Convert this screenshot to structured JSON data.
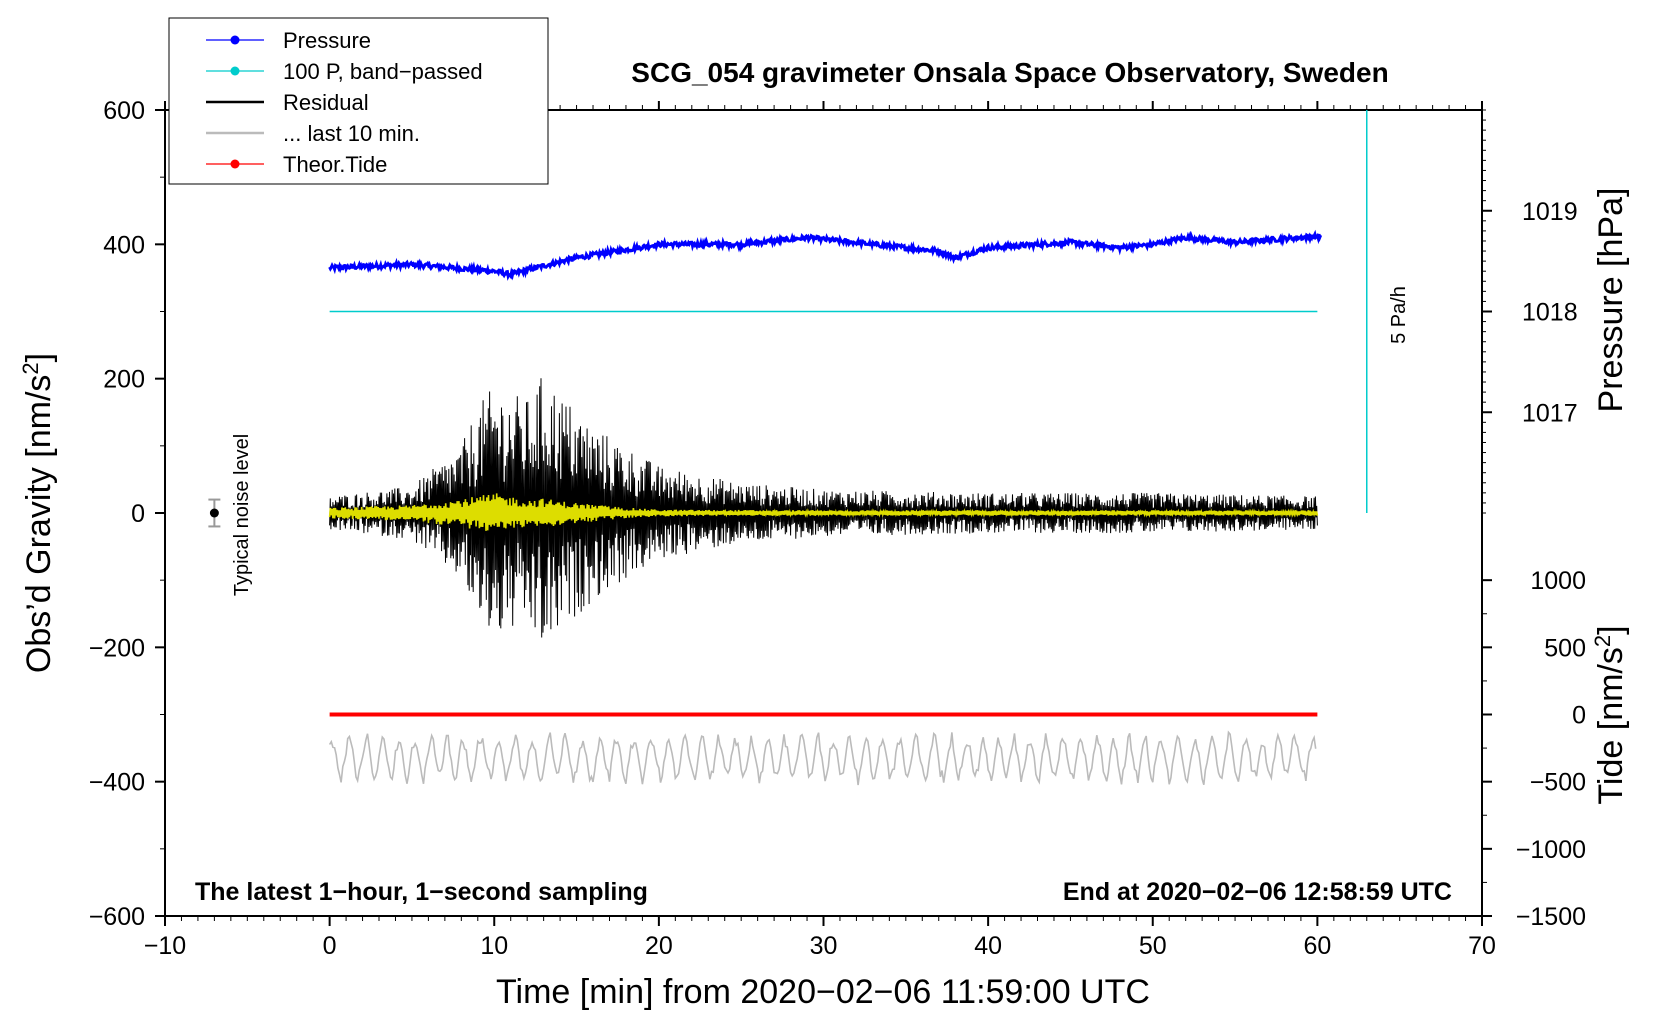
{
  "chart_data": {
    "type": "line",
    "title": "SCG_054 gravimeter Onsala Space Observatory, Sweden",
    "xlabel": "Time [min] from 2020−02−06 11:59:00 UTC",
    "ylabel": "Obs’d Gravity [nm/s²]",
    "ylabel_parts": {
      "text": "Obs’d Gravity [nm/s",
      "sup": "2",
      "close": "]"
    },
    "xlim": [
      -10,
      70
    ],
    "ylim": [
      -600,
      600
    ],
    "x_ticks": [
      -10,
      0,
      10,
      20,
      30,
      40,
      50,
      60,
      70
    ],
    "x_tick_labels": [
      "−10",
      "0",
      "10",
      "20",
      "30",
      "40",
      "50",
      "60",
      "70"
    ],
    "y_ticks": [
      -600,
      -400,
      -200,
      0,
      200,
      400,
      600
    ],
    "y_tick_labels": [
      "−600",
      "−400",
      "−200",
      "0",
      "200",
      "400",
      "600"
    ],
    "right_axis_pressure": {
      "label": "Pressure [hPa]",
      "ticks": [
        1017,
        1018,
        1019
      ],
      "tick_labels": [
        "1017",
        "1018",
        "1019"
      ],
      "gravity_equivalent": [
        150,
        300,
        450
      ]
    },
    "right_axis_tide": {
      "label": "Tide [nm/s²]",
      "label_parts": {
        "text": "Tide [nm/s",
        "sup": "2",
        "close": "]"
      },
      "ticks": [
        -1500,
        -1000,
        -500,
        0,
        500,
        1000
      ],
      "tick_labels": [
        "−1500",
        "−1000",
        "−500",
        "0",
        "500",
        "1000"
      ],
      "gravity_equivalent": [
        -600,
        -500,
        -400,
        -300,
        -200,
        -100
      ]
    },
    "legend": {
      "placement": "top-left",
      "entries": [
        {
          "label": "Pressure",
          "color": "#0000ff",
          "marker": true
        },
        {
          "label": "100 P, band−passed",
          "color": "#00cccc",
          "marker": true
        },
        {
          "label": "Residual",
          "color": "#000000",
          "marker": false
        },
        {
          "label": "... last 10 min.",
          "color": "#bbbbbb",
          "marker": false
        },
        {
          "label": "Theor.Tide",
          "color": "#ff0000",
          "marker": true
        }
      ]
    },
    "series": [
      {
        "name": "Pressure",
        "color": "#0000ff",
        "x": [
          0,
          5,
          10,
          11,
          12,
          15,
          20,
          25,
          29,
          33,
          37,
          38,
          40,
          45,
          48,
          50,
          52,
          55,
          60
        ],
        "values": [
          365,
          370,
          360,
          355,
          362,
          380,
          400,
          400,
          410,
          400,
          390,
          380,
          395,
          403,
          395,
          400,
          410,
          403,
          412
        ]
      },
      {
        "name": "100 P, band−passed",
        "color": "#00cccc",
        "x": [
          0,
          60
        ],
        "values": [
          300,
          300
        ]
      },
      {
        "name": "Residual",
        "color": "#000000",
        "x": [
          0,
          5,
          8,
          9,
          10,
          12,
          13,
          14,
          16,
          18,
          20,
          25,
          30,
          40,
          50,
          60
        ],
        "envelope": [
          25,
          40,
          100,
          160,
          190,
          170,
          210,
          180,
          130,
          100,
          70,
          45,
          35,
          30,
          30,
          25
        ]
      },
      {
        "name": "Residual (yellow overlay)",
        "color": "#dddd00",
        "x": [
          0,
          5,
          9,
          10,
          12,
          13,
          14,
          18,
          20,
          30,
          60
        ],
        "envelope": [
          8,
          12,
          25,
          30,
          20,
          22,
          18,
          8,
          5,
          4,
          4
        ]
      },
      {
        "name": "... last 10 min.",
        "color": "#bbbbbb",
        "x": [
          0,
          60
        ],
        "center": -365,
        "amplitude": 40
      },
      {
        "name": "Theor.Tide",
        "color": "#ff0000",
        "x": [
          0,
          60
        ],
        "values": [
          -300,
          -300
        ]
      }
    ],
    "noise_marker": {
      "x": -7,
      "y": 0,
      "error": 20,
      "label": "Typical noise level"
    },
    "scale_bar": {
      "label": "5 Pa/h",
      "x": 63,
      "y_from": 0,
      "y_to": 600
    },
    "annotations": {
      "bottom_left": "The latest 1−hour, 1−second sampling",
      "bottom_right": "End at 2020−02−06 12:58:59 UTC"
    },
    "grid": false
  }
}
